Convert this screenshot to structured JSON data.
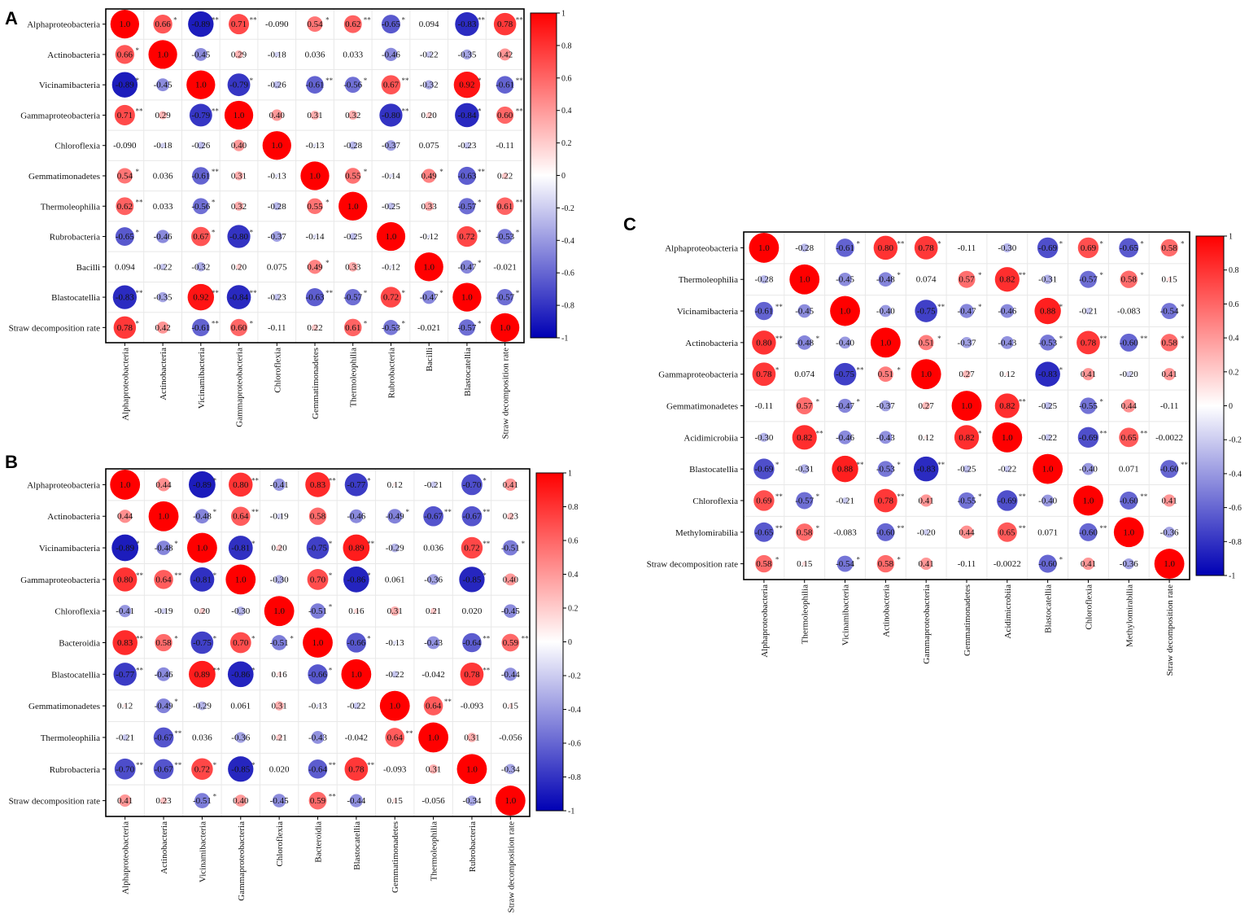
{
  "colors": {
    "positive": "#ff0000",
    "neutral": "#ffffff",
    "negative": "#0000b4",
    "star": "#333333"
  },
  "chart_data": [
    {
      "type": "heatmap",
      "panel": "A",
      "labels": [
        "Alphaproteobacteria",
        "Actinobacteria",
        "Vicinamibacteria",
        "Gammaproteobacteria",
        "Chloroflexia",
        "Gemmatimonadetes",
        "Thermoleophilia",
        "Rubrobacteria",
        "Bacilli",
        "Blastocatellia",
        "Straw decomposition rate"
      ],
      "values": [
        [
          "1.0",
          "0.66",
          "-0.89",
          "0.71",
          "-0.090",
          "0.54",
          "0.62",
          "-0.65",
          "0.094",
          "-0.83",
          "0.78"
        ],
        [
          "0.66",
          "1.0",
          "-0.45",
          "0.29",
          "-0.18",
          "0.036",
          "0.033",
          "-0.46",
          "-0.22",
          "-0.35",
          "0.42"
        ],
        [
          "-0.89",
          "-0.45",
          "1.0",
          "-0.79",
          "-0.26",
          "-0.61",
          "-0.56",
          "0.67",
          "-0.32",
          "0.92",
          "-0.61"
        ],
        [
          "0.71",
          "0.29",
          "-0.79",
          "1.0",
          "0.40",
          "0.31",
          "0.32",
          "-0.80",
          "0.20",
          "-0.84",
          "0.60"
        ],
        [
          "-0.090",
          "-0.18",
          "-0.26",
          "0.40",
          "1.0",
          "-0.13",
          "-0.28",
          "-0.37",
          "0.075",
          "-0.23",
          "-0.11"
        ],
        [
          "0.54",
          "0.036",
          "-0.61",
          "0.31",
          "-0.13",
          "1.0",
          "0.55",
          "-0.14",
          "0.49",
          "-0.63",
          "0.22"
        ],
        [
          "0.62",
          "0.033",
          "-0.56",
          "0.32",
          "-0.28",
          "0.55",
          "1.0",
          "-0.25",
          "0.33",
          "-0.57",
          "0.61"
        ],
        [
          "-0.65",
          "-0.46",
          "0.67",
          "-0.80",
          "-0.37",
          "-0.14",
          "-0.25",
          "1.0",
          "-0.12",
          "0.72",
          "-0.53"
        ],
        [
          "0.094",
          "-0.22",
          "-0.32",
          "0.20",
          "0.075",
          "0.49",
          "0.33",
          "-0.12",
          "1.0",
          "-0.47",
          "-0.021"
        ],
        [
          "-0.83",
          "-0.35",
          "0.92",
          "-0.84",
          "-0.23",
          "-0.63",
          "-0.57",
          "0.72",
          "-0.47",
          "1.0",
          "-0.57"
        ],
        [
          "0.78",
          "0.42",
          "-0.61",
          "0.60",
          "-0.11",
          "0.22",
          "0.61",
          "-0.53",
          "-0.021",
          "-0.57",
          "1.0"
        ]
      ],
      "stars": [
        [
          "",
          "*",
          "**",
          "**",
          "",
          "*",
          "**",
          "*",
          "",
          "**",
          "**"
        ],
        [
          "*",
          "",
          "",
          "",
          "",
          "",
          "",
          "",
          "",
          "",
          ""
        ],
        [
          "*",
          "",
          "",
          "*",
          "",
          "**",
          "*",
          "**",
          "",
          "*",
          "**"
        ],
        [
          "**",
          "",
          "**",
          "",
          "",
          "",
          "",
          "**",
          "",
          "*",
          "**"
        ],
        [
          "",
          "",
          "",
          "",
          "",
          "",
          "",
          "",
          "",
          "",
          ""
        ],
        [
          "*",
          "",
          "**",
          "",
          "",
          "",
          "*",
          "",
          "*",
          "**",
          ""
        ],
        [
          "**",
          "",
          "*",
          "",
          "",
          "*",
          "",
          "",
          "",
          "*",
          "**"
        ],
        [
          "*",
          "",
          "*",
          "*",
          "",
          "",
          "",
          "",
          "",
          "*",
          "*"
        ],
        [
          "",
          "",
          "",
          "",
          "",
          "*",
          "",
          "",
          "",
          "*",
          ""
        ],
        [
          "**",
          "",
          "**",
          "**",
          "",
          "**",
          "*",
          "*",
          "*",
          "",
          "*"
        ],
        [
          "*",
          "",
          "**",
          "*",
          "",
          "",
          "*",
          "*",
          "",
          "*",
          ""
        ]
      ],
      "colorbar": {
        "min": -1,
        "max": 1,
        "ticks": [
          "1",
          "0.8",
          "0.6",
          "0.4",
          "0.2",
          "0",
          "-0.2",
          "-0.4",
          "-0.6",
          "-0.8",
          "-1"
        ]
      }
    },
    {
      "type": "heatmap",
      "panel": "B",
      "labels": [
        "Alphaproteobacteria",
        "Actinobacteria",
        "Vicinamibacteria",
        "Gammaproteobacteria",
        "Chloroflexia",
        "Bacteroidia",
        "Blastocatellia",
        "Gemmatimonadetes",
        "Thermoleophilia",
        "Rubrobacteria",
        "Straw decomposition rate"
      ],
      "values": [
        [
          "1.0",
          "0.44",
          "-0.89",
          "0.80",
          "-0.41",
          "0.83",
          "-0.77",
          "0.12",
          "-0.21",
          "-0.70",
          "0.41"
        ],
        [
          "0.44",
          "1.0",
          "-0.48",
          "0.64",
          "-0.19",
          "0.58",
          "-0.46",
          "-0.49",
          "-0.67",
          "-0.67",
          "0.23"
        ],
        [
          "-0.89",
          "-0.48",
          "1.0",
          "-0.81",
          "0.20",
          "-0.75",
          "0.89",
          "-0.29",
          "0.036",
          "0.72",
          "-0.51"
        ],
        [
          "0.80",
          "0.64",
          "-0.81",
          "1.0",
          "-0.30",
          "0.70",
          "-0.86",
          "0.061",
          "-0.36",
          "-0.85",
          "0.40"
        ],
        [
          "-0.41",
          "-0.19",
          "0.20",
          "-0.30",
          "1.0",
          "-0.51",
          "0.16",
          "0.31",
          "0.21",
          "0.020",
          "-0.45"
        ],
        [
          "0.83",
          "0.58",
          "-0.75",
          "0.70",
          "-0.51",
          "1.0",
          "-0.66",
          "-0.13",
          "-0.43",
          "-0.64",
          "0.59"
        ],
        [
          "-0.77",
          "-0.46",
          "0.89",
          "-0.86",
          "0.16",
          "-0.66",
          "1.0",
          "-0.22",
          "-0.042",
          "0.78",
          "-0.44"
        ],
        [
          "0.12",
          "-0.49",
          "-0.29",
          "0.061",
          "0.31",
          "-0.13",
          "-0.22",
          "1.0",
          "0.64",
          "-0.093",
          "0.15"
        ],
        [
          "-0.21",
          "-0.67",
          "0.036",
          "-0.36",
          "0.21",
          "-0.43",
          "-0.042",
          "0.64",
          "1.0",
          "0.31",
          "-0.056"
        ],
        [
          "-0.70",
          "-0.67",
          "0.72",
          "-0.85",
          "0.020",
          "-0.64",
          "0.78",
          "-0.093",
          "0.31",
          "1.0",
          "-0.34"
        ],
        [
          "0.41",
          "0.23",
          "-0.51",
          "0.40",
          "-0.45",
          "0.59",
          "-0.44",
          "0.15",
          "-0.056",
          "-0.34",
          "1.0"
        ]
      ],
      "stars": [
        [
          "",
          "",
          "*",
          "**",
          "",
          "**",
          "*",
          "",
          "",
          "*",
          ""
        ],
        [
          "",
          "",
          "*",
          "**",
          "",
          "",
          "",
          "*",
          "**",
          "**",
          ""
        ],
        [
          "*",
          "*",
          "",
          "*",
          "",
          "*",
          "**",
          "",
          "",
          "**",
          "*"
        ],
        [
          "**",
          "**",
          "*",
          "",
          "",
          "*",
          "*",
          "",
          "",
          "*",
          ""
        ],
        [
          "",
          "",
          "",
          "",
          "",
          "*",
          "",
          "",
          "",
          "",
          ""
        ],
        [
          "**",
          "*",
          "*",
          "*",
          "*",
          "",
          "*",
          "",
          "",
          "**",
          "**"
        ],
        [
          "**",
          "",
          "**",
          "*",
          "",
          "*",
          "",
          "",
          "",
          "**",
          ""
        ],
        [
          "",
          "*",
          "",
          "",
          "",
          "",
          "",
          "",
          "**",
          "",
          ""
        ],
        [
          "",
          "**",
          "",
          "",
          "",
          "",
          "",
          "**",
          "",
          "",
          ""
        ],
        [
          "**",
          "**",
          "*",
          "*",
          "",
          "**",
          "**",
          "",
          "",
          "",
          ""
        ],
        [
          "",
          "",
          "*",
          "",
          "",
          "**",
          "",
          "",
          "",
          "",
          ""
        ]
      ],
      "colorbar": {
        "min": -1,
        "max": 1,
        "ticks": [
          "1",
          "0.8",
          "0.6",
          "0.4",
          "0.2",
          "0",
          "-0.2",
          "-0.4",
          "-0.6",
          "-0.8",
          "-1"
        ]
      }
    },
    {
      "type": "heatmap",
      "panel": "C",
      "labels": [
        "Alphaproteobacteria",
        "Thermoleophilia",
        "Vicinamibacteria",
        "Actinobacteria",
        "Gammaproteobacteria",
        "Gemmatimonadetes",
        "Acidimicrobiia",
        "Blastocatellia",
        "Chloroflexia",
        "Methylomirabilia",
        "Straw decomposition rate"
      ],
      "values": [
        [
          "1.0",
          "-0.28",
          "-0.61",
          "0.80",
          "0.78",
          "-0.11",
          "-0.30",
          "-0.69",
          "0.69",
          "-0.65",
          "0.58"
        ],
        [
          "-0.28",
          "1.0",
          "-0.45",
          "-0.48",
          "0.074",
          "0.57",
          "0.82",
          "-0.31",
          "-0.57",
          "0.58",
          "0.15"
        ],
        [
          "-0.61",
          "-0.45",
          "1.0",
          "-0.40",
          "-0.75",
          "-0.47",
          "-0.46",
          "0.88",
          "-0.21",
          "-0.083",
          "-0.54"
        ],
        [
          "0.80",
          "-0.48",
          "-0.40",
          "1.0",
          "0.51",
          "-0.37",
          "-0.43",
          "-0.53",
          "0.78",
          "-0.60",
          "0.58"
        ],
        [
          "0.78",
          "0.074",
          "-0.75",
          "0.51",
          "1.0",
          "0.27",
          "0.12",
          "-0.83",
          "0.41",
          "-0.20",
          "0.41"
        ],
        [
          "-0.11",
          "0.57",
          "-0.47",
          "-0.37",
          "0.27",
          "1.0",
          "0.82",
          "-0.25",
          "-0.55",
          "0.44",
          "-0.11"
        ],
        [
          "-0.30",
          "0.82",
          "-0.46",
          "-0.43",
          "0.12",
          "0.82",
          "1.0",
          "-0.22",
          "-0.69",
          "0.65",
          "-0.0022"
        ],
        [
          "-0.69",
          "-0.31",
          "0.88",
          "-0.53",
          "-0.83",
          "-0.25",
          "-0.22",
          "1.0",
          "-0.40",
          "0.071",
          "-0.60"
        ],
        [
          "0.69",
          "-0.57",
          "-0.21",
          "0.78",
          "0.41",
          "-0.55",
          "-0.69",
          "-0.40",
          "1.0",
          "-0.60",
          "0.41"
        ],
        [
          "-0.65",
          "0.58",
          "-0.083",
          "-0.60",
          "-0.20",
          "0.44",
          "0.65",
          "0.071",
          "-0.60",
          "1.0",
          "-0.36"
        ],
        [
          "0.58",
          "0.15",
          "-0.54",
          "0.58",
          "0.41",
          "-0.11",
          "-0.0022",
          "-0.60",
          "0.41",
          "-0.36",
          "1.0"
        ]
      ],
      "stars": [
        [
          "",
          "",
          "*",
          "**",
          "*",
          "",
          "",
          "*",
          "*",
          "*",
          "*"
        ],
        [
          "",
          "",
          "",
          "*",
          "",
          "*",
          "**",
          "",
          "*",
          "*",
          ""
        ],
        [
          "**",
          "",
          "",
          "",
          "**",
          "*",
          "",
          "*",
          "",
          "",
          "*"
        ],
        [
          "**",
          "*",
          "",
          "",
          "*",
          "",
          "",
          "*",
          "**",
          "**",
          "*"
        ],
        [
          "*",
          "",
          "**",
          "*",
          "",
          "",
          "",
          "*",
          "",
          "",
          ""
        ],
        [
          "",
          "*",
          "*",
          "",
          "",
          "",
          "**",
          "",
          "*",
          "",
          ""
        ],
        [
          "",
          "**",
          "",
          "",
          "",
          "*",
          "",
          "",
          "**",
          "**",
          ""
        ],
        [
          "*",
          "",
          "**",
          "*",
          "**",
          "",
          "",
          "",
          "",
          "",
          "**"
        ],
        [
          "**",
          "*",
          "",
          "**",
          "",
          "*",
          "**",
          "",
          "",
          "**",
          ""
        ],
        [
          "**",
          "*",
          "",
          "**",
          "",
          "",
          "**",
          "",
          "**",
          "",
          ""
        ],
        [
          "*",
          "",
          "*",
          "*",
          "",
          "",
          "",
          "*",
          "",
          "",
          ""
        ]
      ],
      "colorbar": {
        "min": -1,
        "max": 1,
        "ticks": [
          "1",
          "0.8",
          "0.6",
          "0.4",
          "0.2",
          "0",
          "-0.2",
          "-0.4",
          "-0.6",
          "-0.8",
          "-1"
        ]
      }
    }
  ]
}
